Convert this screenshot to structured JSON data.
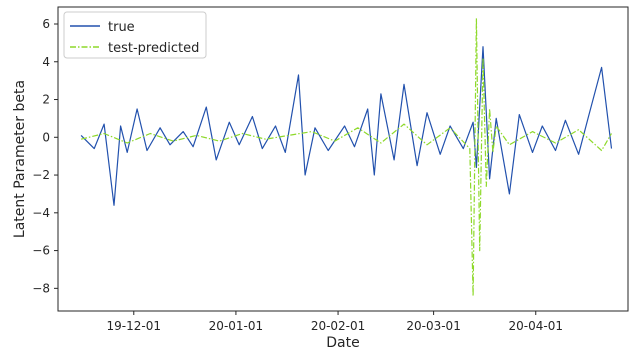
{
  "chart_data": {
    "type": "line",
    "xlabel": "Date",
    "ylabel": "Latent Parameter beta",
    "x_ticks": [
      "19-12-01",
      "20-01-01",
      "20-02-01",
      "20-03-01",
      "20-04-01"
    ],
    "xlim": [
      "19-11-08",
      "20-04-29"
    ],
    "y_ticks": [
      6,
      4,
      2,
      0,
      -2,
      -4,
      -6,
      -8
    ],
    "ylim": [
      -9.2,
      6.9
    ],
    "grid": false,
    "legend_position": "top-left",
    "series": [
      {
        "name": "true",
        "color": "#2251ad",
        "style": "solid",
        "x": [
          "19-11-15",
          "19-11-19",
          "19-11-22",
          "19-11-25",
          "19-11-27",
          "19-11-29",
          "19-12-02",
          "19-12-05",
          "19-12-09",
          "19-12-12",
          "19-12-16",
          "19-12-19",
          "19-12-23",
          "19-12-26",
          "19-12-30",
          "20-01-02",
          "20-01-06",
          "20-01-09",
          "20-01-13",
          "20-01-16",
          "20-01-20",
          "20-01-22",
          "20-01-25",
          "20-01-29",
          "20-02-03",
          "20-02-06",
          "20-02-10",
          "20-02-12",
          "20-02-14",
          "20-02-18",
          "20-02-21",
          "20-02-25",
          "20-02-28",
          "20-03-03",
          "20-03-06",
          "20-03-10",
          "20-03-13",
          "20-03-14",
          "20-03-16",
          "20-03-18",
          "20-03-20",
          "20-03-24",
          "20-03-27",
          "20-03-31",
          "20-04-03",
          "20-04-07",
          "20-04-10",
          "20-04-14",
          "20-04-17",
          "20-04-21",
          "20-04-24"
        ],
        "y": [
          0.1,
          -0.6,
          0.7,
          -3.6,
          0.6,
          -0.8,
          1.5,
          -0.7,
          0.5,
          -0.4,
          0.3,
          -0.5,
          1.6,
          -1.2,
          0.8,
          -0.4,
          1.1,
          -0.6,
          0.6,
          -0.8,
          3.3,
          -2.0,
          0.5,
          -0.7,
          0.6,
          -0.5,
          1.5,
          -2.0,
          2.3,
          -1.2,
          2.8,
          -1.5,
          1.3,
          -0.9,
          0.6,
          -0.6,
          0.8,
          -1.6,
          4.8,
          -2.2,
          1.0,
          -3.0,
          1.2,
          -0.8,
          0.6,
          -0.7,
          0.9,
          -0.9,
          1.1,
          3.7,
          -0.6
        ]
      },
      {
        "name": "test-predicted",
        "color": "#8ed92a",
        "style": "dashdot",
        "x": [
          "19-11-15",
          "19-11-22",
          "19-11-29",
          "19-12-06",
          "19-12-13",
          "19-12-20",
          "19-12-27",
          "20-01-03",
          "20-01-10",
          "20-01-17",
          "20-01-24",
          "20-01-31",
          "20-02-07",
          "20-02-14",
          "20-02-21",
          "20-02-28",
          "20-03-06",
          "20-03-12",
          "20-03-13",
          "20-03-14",
          "20-03-15",
          "20-03-16",
          "20-03-17",
          "20-03-18",
          "20-03-19",
          "20-03-20",
          "20-03-24",
          "20-03-31",
          "20-04-07",
          "20-04-14",
          "20-04-21",
          "20-04-24"
        ],
        "y": [
          -0.1,
          0.2,
          -0.3,
          0.2,
          -0.2,
          0.1,
          -0.2,
          0.2,
          -0.1,
          0.1,
          0.3,
          -0.2,
          0.5,
          -0.3,
          0.7,
          -0.4,
          0.5,
          -0.6,
          -8.4,
          6.3,
          -6.0,
          4.2,
          -2.6,
          1.5,
          -0.8,
          0.6,
          -0.4,
          0.3,
          -0.3,
          0.4,
          -0.7,
          0.2
        ]
      }
    ]
  }
}
